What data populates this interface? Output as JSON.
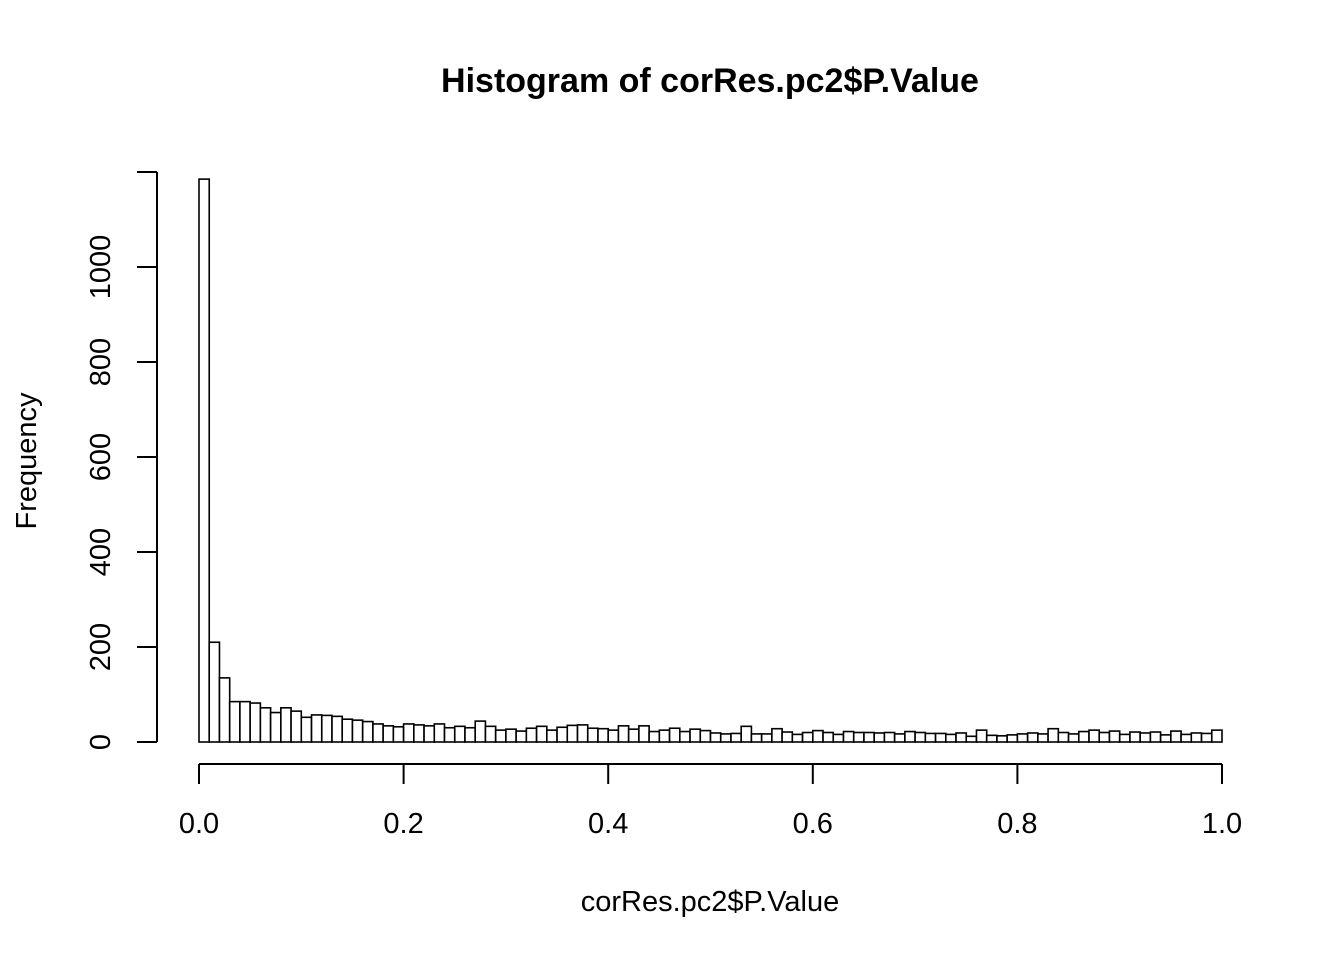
{
  "chart_data": {
    "type": "bar",
    "title": "Histogram of corRes.pc2$P.Value",
    "xlabel": "corRes.pc2$P.Value",
    "ylabel": "Frequency",
    "xlim": [
      0,
      1
    ],
    "ylim": [
      0,
      1200
    ],
    "bin_width": 0.01,
    "x_ticks": [
      "0.0",
      "0.2",
      "0.4",
      "0.6",
      "0.8",
      "1.0"
    ],
    "y_ticks": [
      "0",
      "200",
      "400",
      "600",
      "800",
      "1000"
    ],
    "grid": false,
    "legend": "none",
    "values": [
      1185,
      210,
      135,
      85,
      85,
      82,
      72,
      62,
      72,
      65,
      52,
      57,
      56,
      54,
      48,
      46,
      43,
      38,
      34,
      32,
      38,
      36,
      34,
      38,
      30,
      33,
      30,
      44,
      33,
      25,
      27,
      23,
      29,
      33,
      25,
      31,
      35,
      36,
      29,
      28,
      25,
      34,
      27,
      34,
      22,
      25,
      29,
      22,
      27,
      24,
      19,
      17,
      18,
      33,
      17,
      17,
      28,
      21,
      16,
      20,
      24,
      20,
      16,
      22,
      20,
      20,
      19,
      20,
      17,
      22,
      20,
      18,
      18,
      16,
      19,
      12,
      25,
      14,
      13,
      15,
      17,
      19,
      17,
      28,
      20,
      17,
      22,
      25,
      20,
      23,
      16,
      21,
      19,
      21,
      15,
      23,
      16,
      19,
      18,
      25
    ]
  }
}
